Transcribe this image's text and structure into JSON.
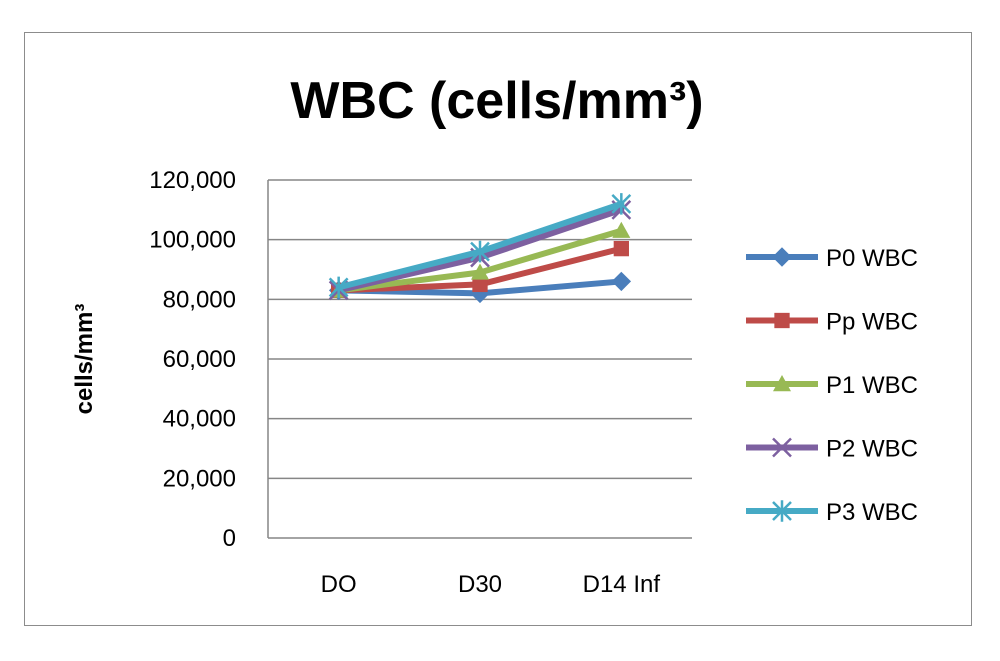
{
  "chart_data": {
    "type": "line",
    "title": "WBC (cells/mm³)",
    "xlabel": "",
    "ylabel": "cells/mm³",
    "categories": [
      "DO",
      "D30",
      "D14 Inf"
    ],
    "ylim": [
      0,
      120000
    ],
    "yticks": [
      0,
      20000,
      40000,
      60000,
      80000,
      100000,
      120000
    ],
    "ytick_labels": [
      "0",
      "20,000",
      "40,000",
      "60,000",
      "80,000",
      "100,000",
      "120,000"
    ],
    "grid": true,
    "legend_position": "right",
    "series": [
      {
        "name": "P0 WBC",
        "values": [
          83000,
          82000,
          86000
        ],
        "color": "#4a7ebb",
        "marker": "diamond"
      },
      {
        "name": "Pp WBC",
        "values": [
          83000,
          85000,
          97000
        ],
        "color": "#be4b48",
        "marker": "square"
      },
      {
        "name": "P1 WBC",
        "values": [
          83000,
          89000,
          103000
        ],
        "color": "#98b954",
        "marker": "triangle"
      },
      {
        "name": "P2 WBC",
        "values": [
          83000,
          94000,
          110000
        ],
        "color": "#7d60a0",
        "marker": "x"
      },
      {
        "name": "P3 WBC",
        "values": [
          84000,
          96000,
          112000
        ],
        "color": "#46aac5",
        "marker": "star"
      }
    ]
  }
}
